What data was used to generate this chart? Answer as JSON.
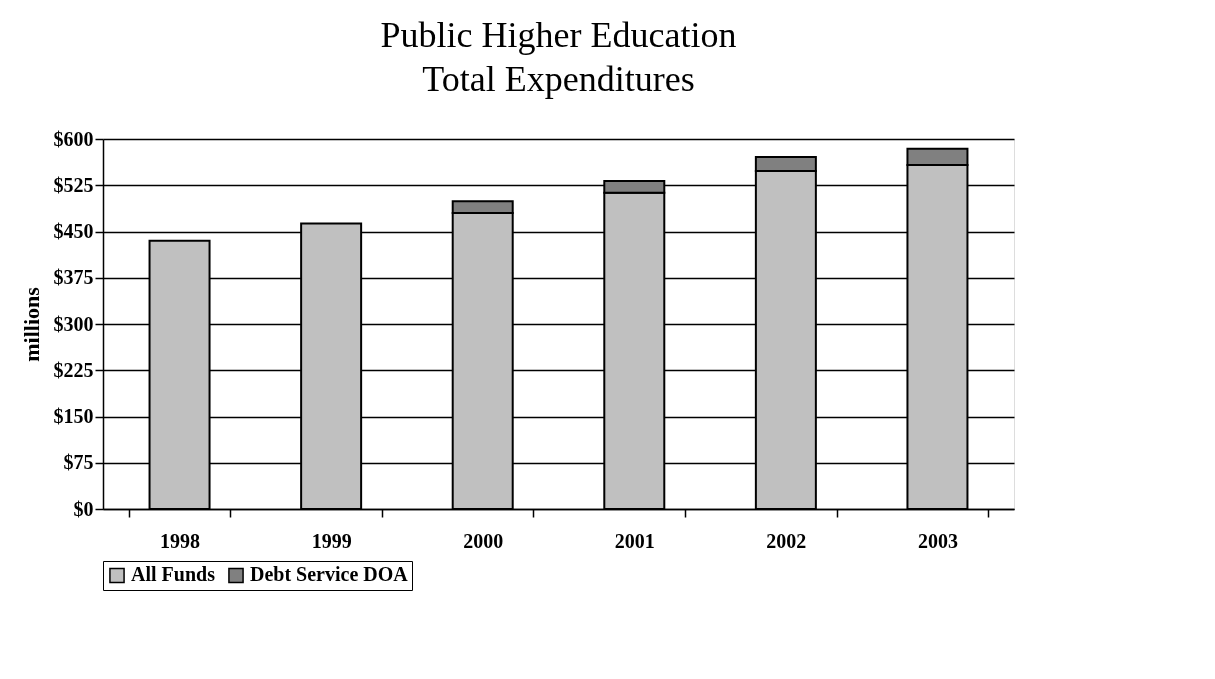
{
  "chart_data": {
    "type": "bar",
    "title": [
      "Public Higher Education",
      "Total Expenditures"
    ],
    "ylabel": "millions",
    "categories": [
      "1998",
      "1999",
      "2000",
      "2001",
      "2002",
      "2003"
    ],
    "stacked": true,
    "series": [
      {
        "name": "All Funds",
        "color": "#c0c0c0",
        "values": [
          435,
          463,
          480,
          513,
          548,
          558
        ]
      },
      {
        "name": "Debt Service DOA",
        "color": "#808080",
        "values": [
          null,
          null,
          19,
          19,
          23,
          26
        ]
      }
    ],
    "ylim": [
      0,
      600
    ],
    "yticks": [
      {
        "value": 0,
        "label": "$0"
      },
      {
        "value": 75,
        "label": "$75"
      },
      {
        "value": 150,
        "label": "$150"
      },
      {
        "value": 225,
        "label": "$225"
      },
      {
        "value": 300,
        "label": "$300"
      },
      {
        "value": 375,
        "label": "$375"
      },
      {
        "value": 450,
        "label": "$450"
      },
      {
        "value": 525,
        "label": "$525"
      },
      {
        "value": 600,
        "label": "$600"
      }
    ],
    "grid": "y",
    "legend": "bottom"
  }
}
